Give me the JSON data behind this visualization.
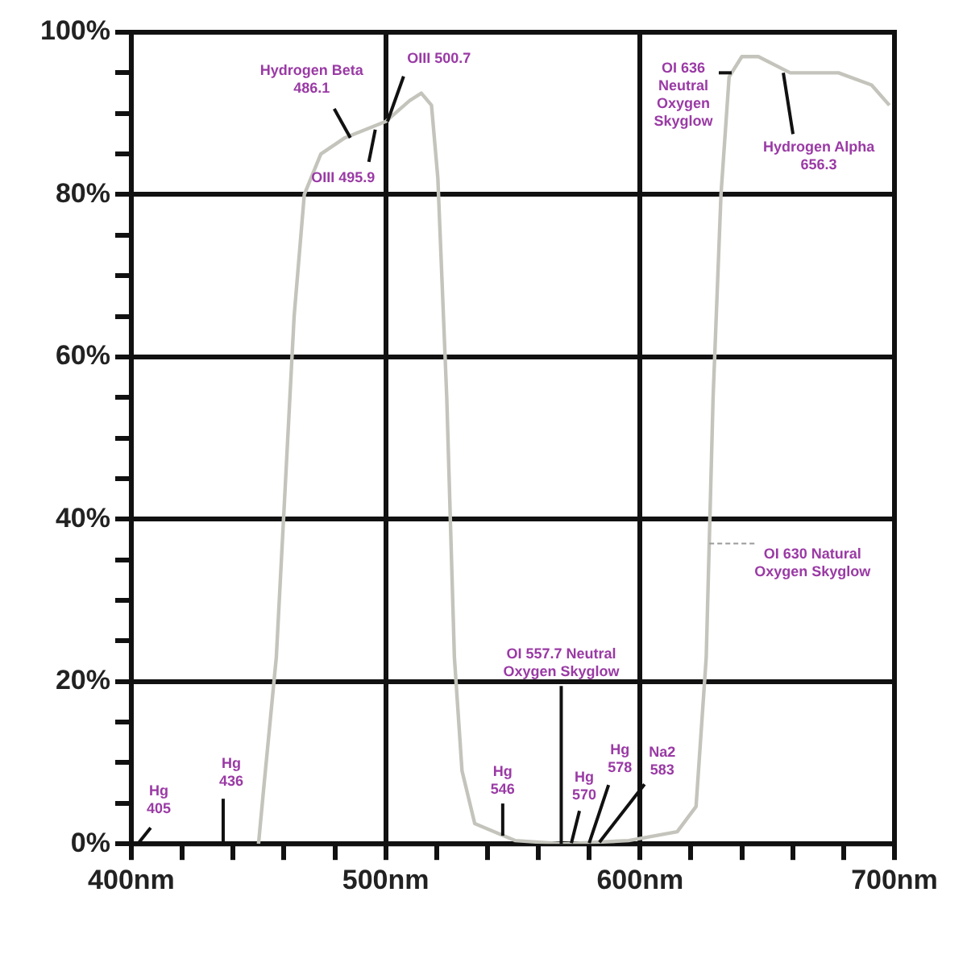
{
  "chart_data": {
    "type": "line",
    "x": [
      450,
      452,
      457,
      460.5,
      464,
      468,
      474.5,
      484,
      500,
      509.5,
      514,
      518,
      520.5,
      524,
      527,
      530,
      535,
      551,
      570,
      595.5,
      614.6,
      622,
      626,
      628.7,
      631.8,
      635,
      640,
      646.5,
      659,
      678,
      691,
      698
    ],
    "series": [
      {
        "color": "#c4c4bc",
        "values": [
          0,
          6.7,
          23,
          44,
          65,
          80,
          85,
          87,
          89,
          91.6,
          92.5,
          91,
          82,
          55,
          23,
          9,
          2.5,
          0.4,
          0,
          0.4,
          1.5,
          4.6,
          23,
          55,
          80,
          94.5,
          97,
          97,
          95,
          95,
          93.5,
          91
        ]
      }
    ],
    "xlim": [
      400,
      700
    ],
    "xticks": [
      {
        "value": 400,
        "label": "400nm"
      },
      {
        "value": 420,
        "label": null
      },
      {
        "value": 440,
        "label": null
      },
      {
        "value": 460,
        "label": null
      },
      {
        "value": 480,
        "label": null
      },
      {
        "value": 500,
        "label": "500nm"
      },
      {
        "value": 520,
        "label": null
      },
      {
        "value": 540,
        "label": null
      },
      {
        "value": 560,
        "label": null
      },
      {
        "value": 580,
        "label": null
      },
      {
        "value": 600,
        "label": "600nm"
      },
      {
        "value": 620,
        "label": null
      },
      {
        "value": 640,
        "label": null
      },
      {
        "value": 660,
        "label": null
      },
      {
        "value": 680,
        "label": null
      },
      {
        "value": 700,
        "label": "700nm"
      }
    ],
    "ylim": [
      0,
      100
    ],
    "yticks": [
      {
        "value": 0,
        "label": "0%"
      },
      {
        "value": 5,
        "label": null
      },
      {
        "value": 10,
        "label": null
      },
      {
        "value": 15,
        "label": null
      },
      {
        "value": 20,
        "label": "20%"
      },
      {
        "value": 25,
        "label": null
      },
      {
        "value": 30,
        "label": null
      },
      {
        "value": 35,
        "label": null
      },
      {
        "value": 40,
        "label": "40%"
      },
      {
        "value": 45,
        "label": null
      },
      {
        "value": 50,
        "label": null
      },
      {
        "value": 55,
        "label": null
      },
      {
        "value": 60,
        "label": "60%"
      },
      {
        "value": 65,
        "label": null
      },
      {
        "value": 70,
        "label": null
      },
      {
        "value": 75,
        "label": null
      },
      {
        "value": 80,
        "label": "80%"
      },
      {
        "value": 85,
        "label": null
      },
      {
        "value": 90,
        "label": null
      },
      {
        "value": 95,
        "label": null
      },
      {
        "value": 100,
        "label": "100%"
      }
    ],
    "grid": true,
    "legend": false,
    "marker": "none",
    "line_style": "solid",
    "annotations": [
      {
        "text": "Hydrogen Beta 486.1",
        "x": 486.1,
        "y": 87
      },
      {
        "text": "OIII 500.7",
        "x": 500.7,
        "y": 89
      },
      {
        "text": "OIII 495.9",
        "x": 495.9,
        "y": 88
      },
      {
        "text": "OI 636 Neutral Oxygen Skyglow",
        "x": 636,
        "y": 95
      },
      {
        "text": "Hydrogen Alpha 656.3",
        "x": 656.3,
        "y": 95
      },
      {
        "text": "OI 630 Natural Oxygen Skyglow",
        "x": 627.2,
        "y": 37
      },
      {
        "text": "OI 557.7 Neutral Oxygen Skyglow",
        "x": 569,
        "y": 0
      },
      {
        "text": "Hg 546",
        "x": 546,
        "y": 1
      },
      {
        "text": "Hg 570",
        "x": 573,
        "y": 0.1
      },
      {
        "text": "Hg 578",
        "x": 580,
        "y": 0.1
      },
      {
        "text": "Na2 583",
        "x": 584,
        "y": 0.2
      },
      "Hg 405",
      "Hg 436"
    ]
  }
}
